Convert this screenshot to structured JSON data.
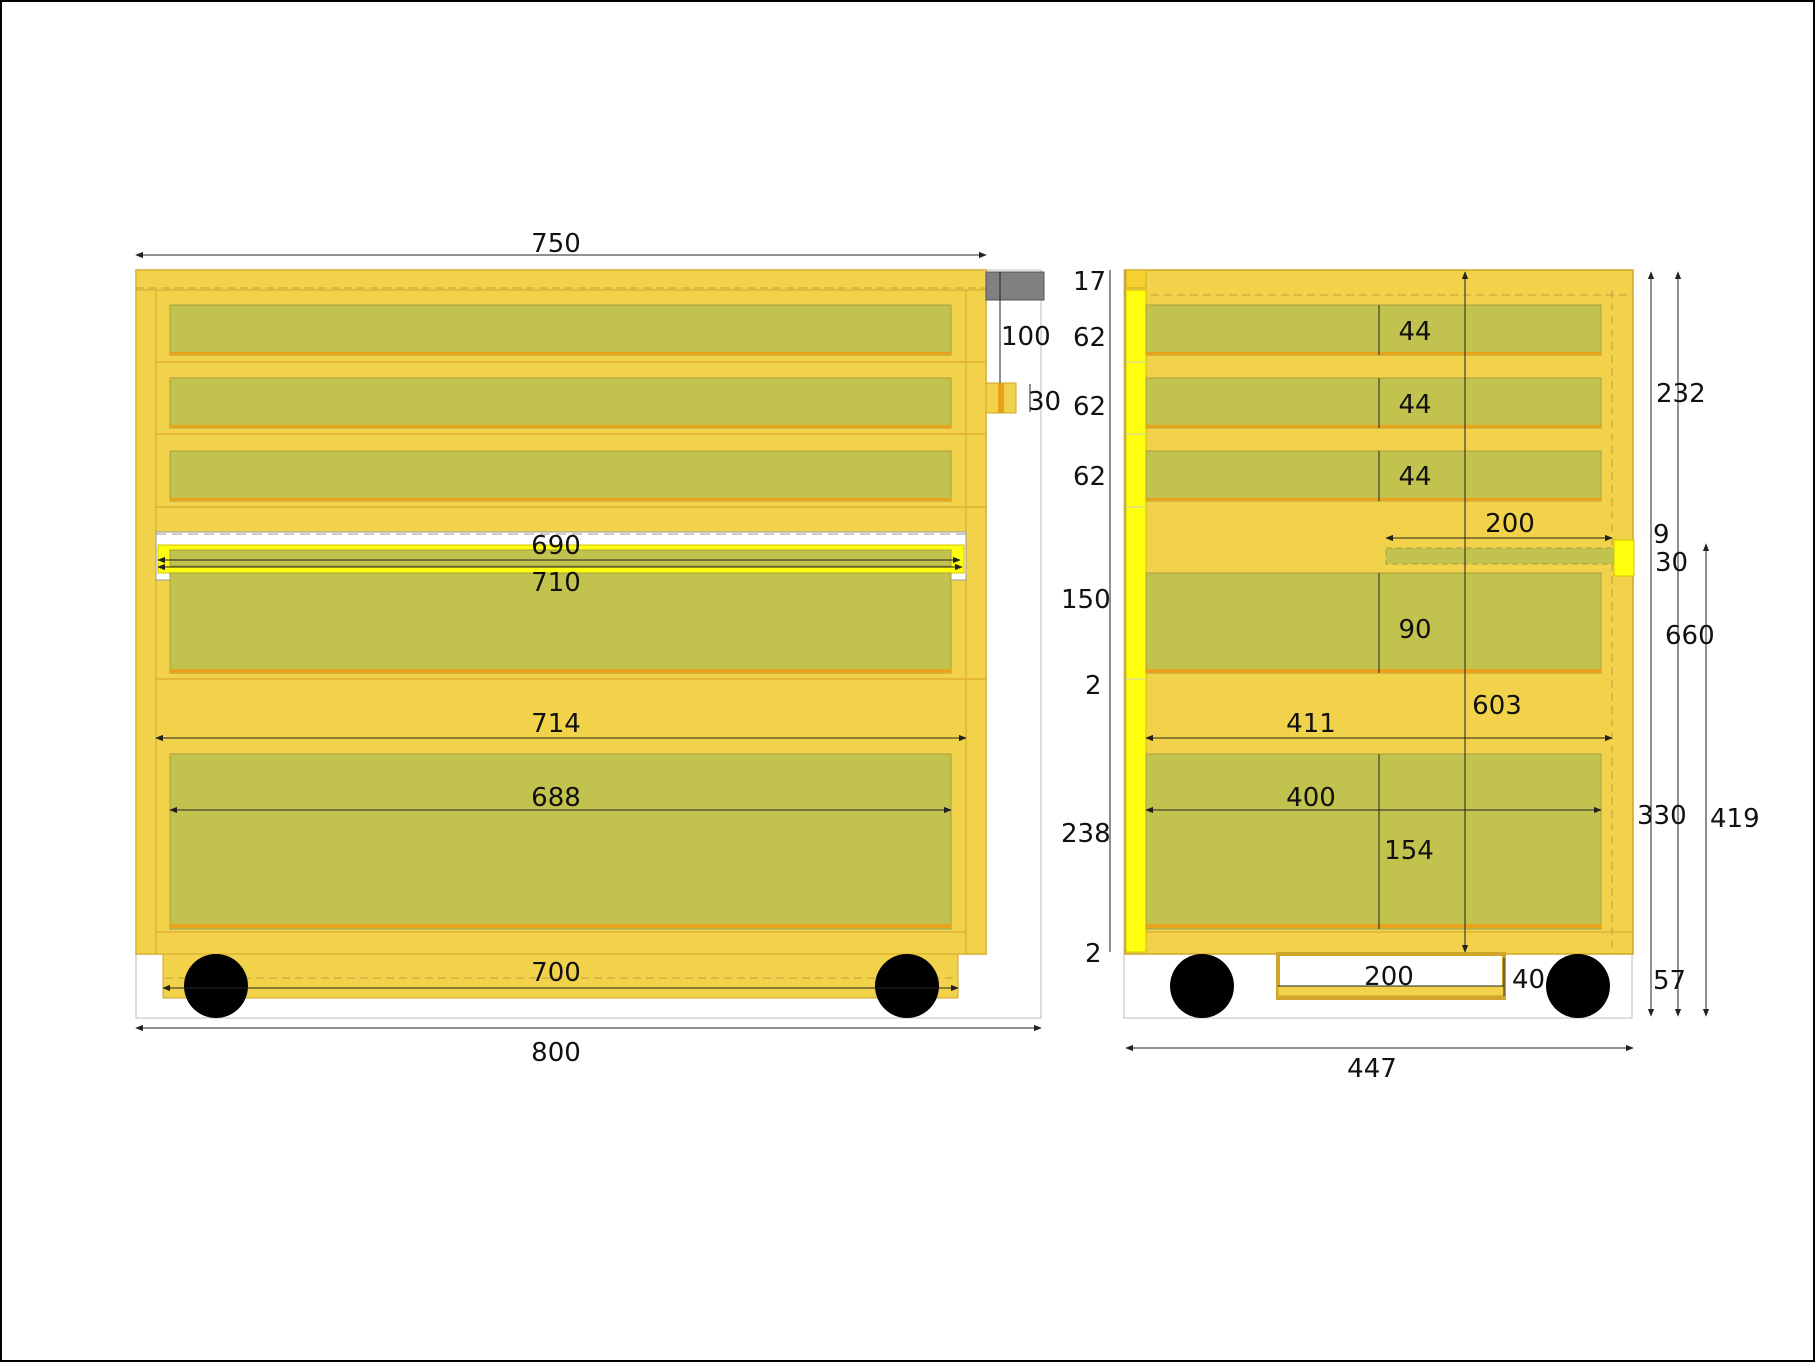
{
  "colors": {
    "body": "#f2d24a",
    "panel": "#c2c24e",
    "edge": "#e8a21c",
    "accent": "#f5d230",
    "slide": "#ffff10",
    "frame_line": "#cfa62a",
    "top_cap": "#808080",
    "wheel": "#000000",
    "dim_line": "#222222",
    "border": "#000000"
  },
  "front_view": {
    "dims": {
      "top_width": "750",
      "handle_height": "100",
      "handle_size": "30",
      "slide_inner": "690",
      "slide_outer": "710",
      "inner_width": "714",
      "panel_width": "688",
      "base_width": "700",
      "overall_width": "800"
    }
  },
  "side_view": {
    "dims": {
      "top_thickness": "17",
      "row_1": "62",
      "row_2": "62",
      "row_3": "62",
      "row_4": "150",
      "gap_1": "2",
      "row_5": "238",
      "gap_2": "2",
      "drawer_1": "44",
      "drawer_2": "44",
      "drawer_3": "44",
      "rail_length": "200",
      "drawer_4": "90",
      "inner_height": "603",
      "inner_depth": "411",
      "drawer_depth": "400",
      "drawer_5": "154",
      "base_rail": "200",
      "base_height": "40",
      "upper_height": "232",
      "handle_gap": "9",
      "handle_size": "30",
      "lower_height": "660",
      "mid_height": "330",
      "total_height": "419",
      "caster_height": "57",
      "overall_depth": "447"
    }
  }
}
